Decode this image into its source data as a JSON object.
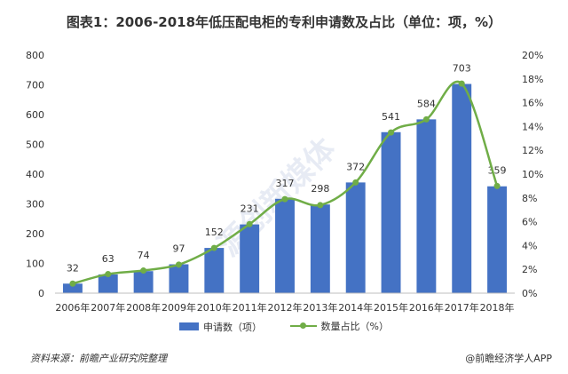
{
  "chart_data": {
    "type": "bar",
    "title": "图表1：2006-2018年低压配电柜的专利申请数及占比（单位：项，%）",
    "categories": [
      "2006年",
      "2007年",
      "2008年",
      "2009年",
      "2010年",
      "2011年",
      "2012年",
      "2013年",
      "2014年",
      "2015年",
      "2016年",
      "2017年",
      "2018年"
    ],
    "series": [
      {
        "name": "申请数（项）",
        "type": "bar",
        "axis": "left",
        "color": "#4472C4",
        "values": [
          32,
          63,
          74,
          97,
          152,
          231,
          317,
          298,
          372,
          541,
          584,
          703,
          359
        ]
      },
      {
        "name": "数量占比（%）",
        "type": "line",
        "axis": "right",
        "color": "#70AD47",
        "values": [
          0.8,
          1.6,
          1.9,
          2.4,
          3.8,
          5.8,
          7.9,
          7.4,
          9.3,
          13.5,
          14.6,
          17.6,
          9.0
        ]
      }
    ],
    "y_left": {
      "min": 0,
      "max": 800,
      "ticks": [
        "0",
        "100",
        "200",
        "300",
        "400",
        "500",
        "600",
        "700",
        "800"
      ]
    },
    "y_right": {
      "min": 0,
      "max": 20,
      "ticks": [
        "0%",
        "2%",
        "4%",
        "6%",
        "8%",
        "10%",
        "12%",
        "14%",
        "16%",
        "18%",
        "20%"
      ]
    },
    "grid": false,
    "legend_position": "bottom"
  },
  "source": "资料来源：前瞻产业研究院整理",
  "credit": "@前瞻经济学人APP",
  "watermark": "源创新媒体"
}
